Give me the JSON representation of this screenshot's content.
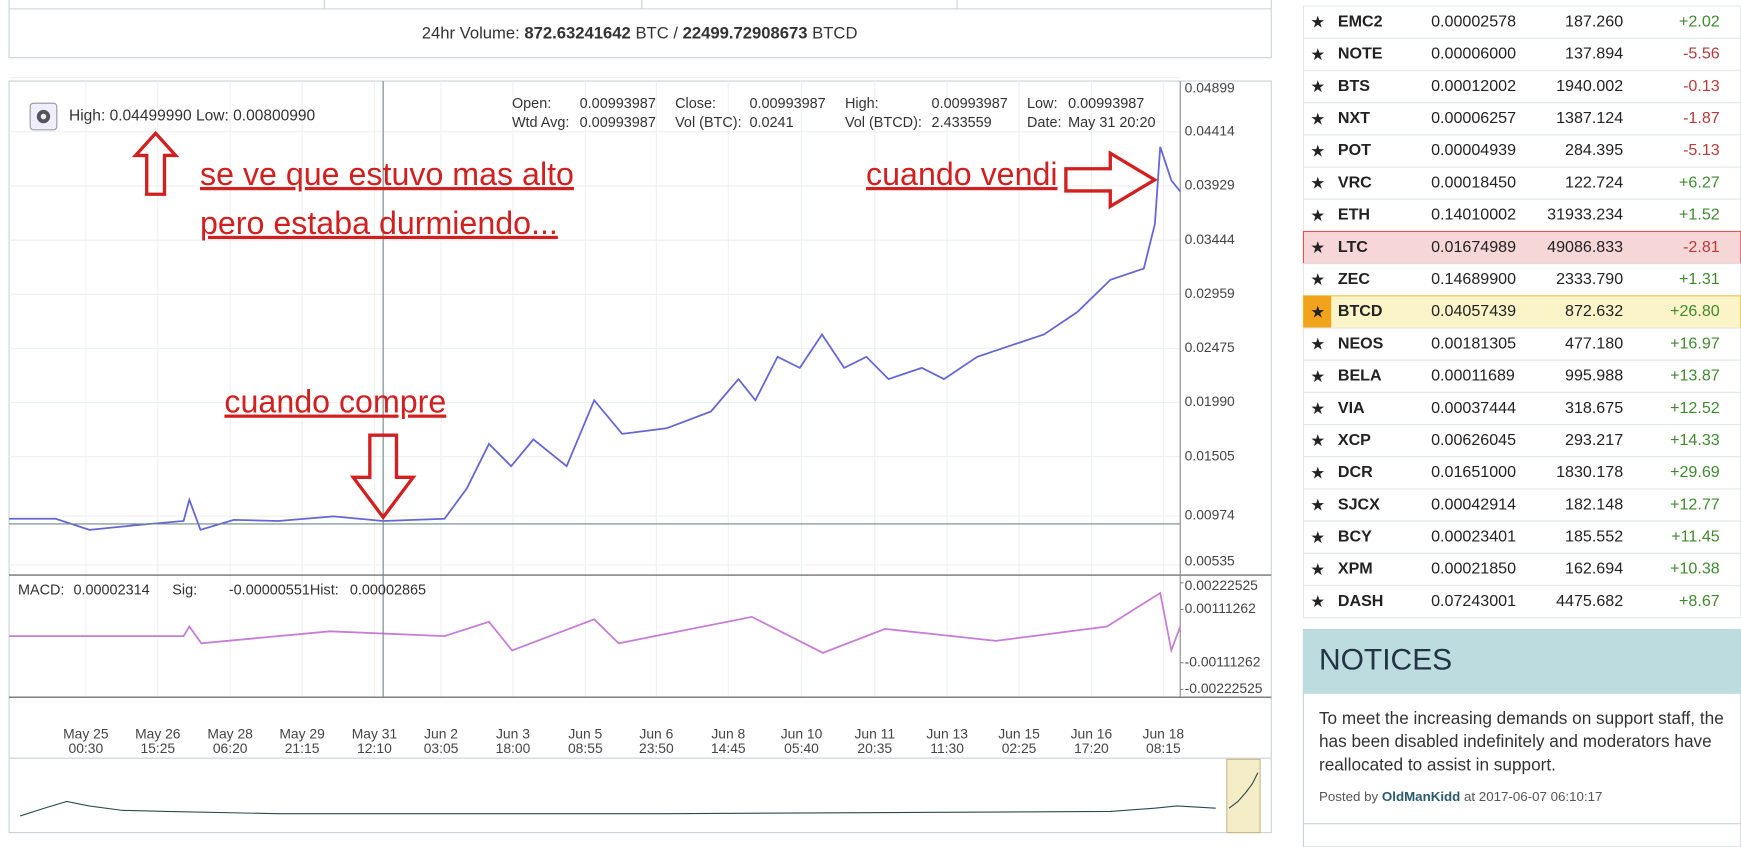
{
  "volume_bar": {
    "label": "24hr Volume:",
    "btc": "872.63241642",
    "btc_unit": "BTC /",
    "btcd": "22499.72908673",
    "btcd_unit": "BTCD"
  },
  "chart_header": {
    "high_label": "High:",
    "high": "0.04499990",
    "low_label": "Low:",
    "low": "0.00800990",
    "cells": [
      [
        "Open:",
        "0.00993987"
      ],
      [
        "Close:",
        "0.00993987"
      ],
      [
        "High:",
        "0.00993987"
      ],
      [
        "Low:",
        "0.00993987"
      ],
      [
        "Wtd Avg:",
        "0.00993987"
      ],
      [
        "Vol (BTC):",
        "0.0241"
      ],
      [
        "Vol (BTCD):",
        "2.433559"
      ],
      [
        "Date:",
        "May 31 20:20"
      ]
    ],
    "macd": [
      [
        "MACD:",
        "0.00002314"
      ],
      [
        "Sig:",
        "-0.00000551"
      ],
      [
        "Hist:",
        "0.00002865"
      ]
    ]
  },
  "annotations": [
    "se ve que estuvo mas alto",
    "pero estaba durmiendo...",
    "cuando vendi",
    "cuando compre"
  ],
  "chart_data": [
    {
      "type": "line",
      "x": [
        -1.73,
        -0.68,
        0.08,
        1.08,
        2.2,
        2.33,
        2.58,
        3.33,
        4.33,
        5.58,
        6.7,
        8.08,
        8.58,
        9.08,
        9.58,
        10.08,
        10.83,
        11.45,
        12.08,
        13.08,
        14.08,
        14.7,
        15.08,
        15.58,
        16.08,
        16.58,
        17.08,
        17.58,
        18.08,
        18.83,
        19.33,
        20.08,
        20.83,
        21.58,
        22.33,
        23.08,
        23.83,
        24.08,
        24.2,
        24.45,
        24.65
      ],
      "series": [
        {
          "color": "#6466d6",
          "values": [
            0.0095,
            0.0095,
            0.0085,
            0.0089,
            0.0093,
            0.0112,
            0.0085,
            0.0094,
            0.0093,
            0.0097,
            0.0093,
            0.0095,
            0.0122,
            0.0162,
            0.0142,
            0.0166,
            0.0142,
            0.0201,
            0.0171,
            0.0176,
            0.0191,
            0.022,
            0.0201,
            0.024,
            0.023,
            0.026,
            0.023,
            0.024,
            0.022,
            0.023,
            0.022,
            0.024,
            0.025,
            0.026,
            0.028,
            0.0309,
            0.0319,
            0.0359,
            0.0428,
            0.0398,
            0.0388
          ]
        }
      ],
      "xlim": [
        -1.73,
        24.65
      ],
      "ylim": [
        0.00535,
        0.04899
      ],
      "yticks": [
        0.04899,
        0.04414,
        0.03929,
        0.03444,
        0.02959,
        0.02475,
        {
          "value": 0.0199,
          "label": "0.01990"
        },
        0.01505,
        0.00974,
        0.00535
      ],
      "xticks": [
        {
          "value": 0,
          "label": "May 25",
          "time": "00:30"
        },
        {
          "value": 1.62,
          "label": "May 26",
          "time": "15:25"
        },
        {
          "value": 3.25,
          "label": "May 28",
          "time": "06:20"
        },
        {
          "value": 4.87,
          "label": "May 29",
          "time": "21:15"
        },
        {
          "value": 6.5,
          "label": "May 31",
          "time": "12:10"
        },
        {
          "value": 8.0,
          "label": "Jun 2",
          "time": "03:05"
        },
        {
          "value": 9.62,
          "label": "Jun 3",
          "time": "18:00"
        },
        {
          "value": 11.25,
          "label": "Jun 5",
          "time": "08:55"
        },
        {
          "value": 12.85,
          "label": "Jun 6",
          "time": "23:50"
        },
        {
          "value": 14.47,
          "label": "Jun 8",
          "time": "14:45"
        },
        {
          "value": 16.12,
          "label": "Jun 10",
          "time": "05:40"
        },
        {
          "value": 17.77,
          "label": "Jun 11",
          "time": "20:35"
        },
        {
          "value": 19.4,
          "label": "Jun 13",
          "time": "11:30"
        },
        {
          "value": 21.02,
          "label": "Jun 15",
          "time": "02:25"
        },
        {
          "value": 22.65,
          "label": "Jun 16",
          "time": "17:20"
        },
        {
          "value": 24.27,
          "label": "Jun 18",
          "time": "08:15"
        }
      ],
      "grid": true
    },
    {
      "type": "line",
      "x": [
        -1.73,
        2.2,
        2.33,
        2.6,
        5.5,
        8.08,
        9.08,
        9.6,
        11.45,
        12.0,
        15.0,
        16.6,
        18.0,
        20.5,
        23.0,
        24.2,
        24.45,
        24.65
      ],
      "series": [
        {
          "color": "#c77dd6",
          "values": [
            0,
            0,
            0.0004,
            -0.0003,
            0.0002,
            0,
            0.0006,
            -0.0006,
            0.0007,
            -0.0003,
            0.0008,
            -0.0007,
            0.0003,
            -0.0002,
            0.0004,
            0.0018,
            -0.0006,
            0.0004
          ]
        }
      ],
      "xlim": [
        -1.73,
        24.65
      ],
      "ylim": [
        -0.00255,
        0.00255
      ],
      "yticks": [
        0.00222525,
        0.00111262,
        -0.00111262,
        -0.00222525
      ]
    }
  ],
  "markets": {
    "rows": [
      [
        "EMC2",
        "0.00002578",
        "187.260",
        "+2.02"
      ],
      [
        "NOTE",
        "0.00006000",
        "137.894",
        "-5.56"
      ],
      [
        "BTS",
        "0.00012002",
        "1940.002",
        "-0.13"
      ],
      [
        "NXT",
        "0.00006257",
        "1387.124",
        "-1.87"
      ],
      [
        "POT",
        "0.00004939",
        "284.395",
        "-5.13"
      ],
      [
        "VRC",
        "0.00018450",
        "122.724",
        "+6.27"
      ],
      [
        "ETH",
        "0.14010002",
        "31933.234",
        "+1.52"
      ],
      [
        "LTC",
        "0.01674989",
        "49086.833",
        "-2.81"
      ],
      [
        "ZEC",
        "0.14689900",
        "2333.790",
        "+1.31"
      ],
      [
        "BTCD",
        "0.04057439",
        "872.632",
        "+26.80"
      ],
      [
        "NEOS",
        "0.00181305",
        "477.180",
        "+16.97"
      ],
      [
        "BELA",
        "0.00011689",
        "995.988",
        "+13.87"
      ],
      [
        "VIA",
        "0.00037444",
        "318.675",
        "+12.52"
      ],
      [
        "XCP",
        "0.00626045",
        "293.217",
        "+14.33"
      ],
      [
        "DCR",
        "0.01651000",
        "1830.178",
        "+29.69"
      ],
      [
        "SJCX",
        "0.00042914",
        "182.148",
        "+12.77"
      ],
      [
        "BCY",
        "0.00023401",
        "185.552",
        "+11.45"
      ],
      [
        "XPM",
        "0.00021850",
        "162.694",
        "+10.38"
      ],
      [
        "DASH",
        "0.07243001",
        "4475.682",
        "+8.67"
      ]
    ],
    "selected_row": 7,
    "current_row": 9
  },
  "notices": {
    "title": "NOTICES",
    "lines": [
      "To meet the increasing demands on support staff, the",
      "has been disabled indefinitely and moderators have",
      "reallocated to assist in support."
    ],
    "posted_by": "Posted by",
    "author": "OldManKidd",
    "at": "at 2017-06-07 06:10:17"
  }
}
